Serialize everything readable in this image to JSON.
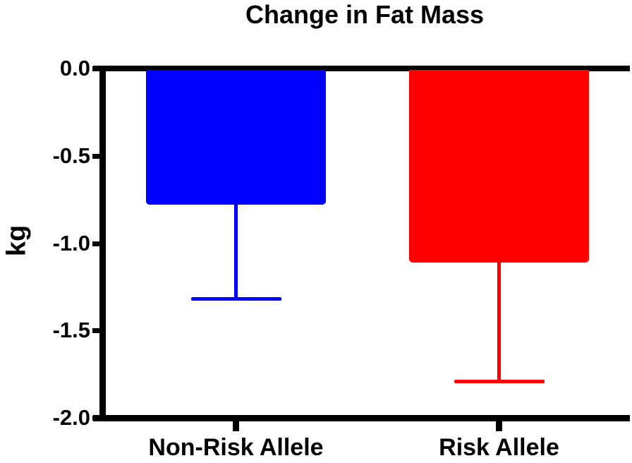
{
  "chart_data": {
    "type": "bar",
    "title": "Change in Fat Mass",
    "xlabel": "",
    "ylabel": "kg",
    "categories": [
      "Non-Risk Allele",
      "Risk Allele"
    ],
    "values": [
      -0.78,
      -1.11
    ],
    "error_bar_ends": [
      -1.32,
      -1.79
    ],
    "bar_colors": [
      "#0000ff",
      "#ff0000"
    ],
    "axis_color": "#000000",
    "ylim": [
      -2.0,
      0.0
    ],
    "yticks": [
      0.0,
      -0.5,
      -1.0,
      -1.5,
      -2.0
    ],
    "ytick_labels": [
      "0.0",
      "-0.5",
      "-1.0",
      "-1.5",
      "-2.0"
    ],
    "grid": false,
    "legend_position": "none"
  }
}
